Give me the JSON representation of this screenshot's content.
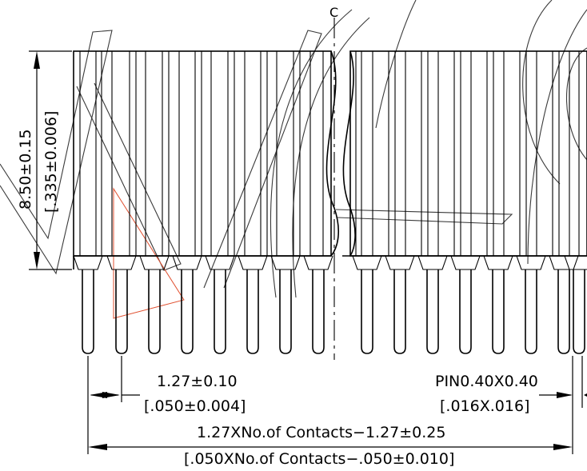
{
  "drawing": {
    "centerline_label": "C",
    "dimensions": {
      "height_mm": "8.50±0.15",
      "height_in": "[.335±0.006]",
      "pitch_mm": "1.27±0.10",
      "pitch_in": "[.050±0.004]",
      "pin_mm": "PIN0.40X0.40",
      "pin_in": "[.016X.016]",
      "length_mm": "1.27XNo.of Contacts−1.27±0.25",
      "length_in": "[.050XNo.of Contacts−.050±0.010]"
    },
    "colors": {
      "line": "#000000",
      "watermark": "#3a3a3a",
      "accent": "#e05030"
    }
  }
}
